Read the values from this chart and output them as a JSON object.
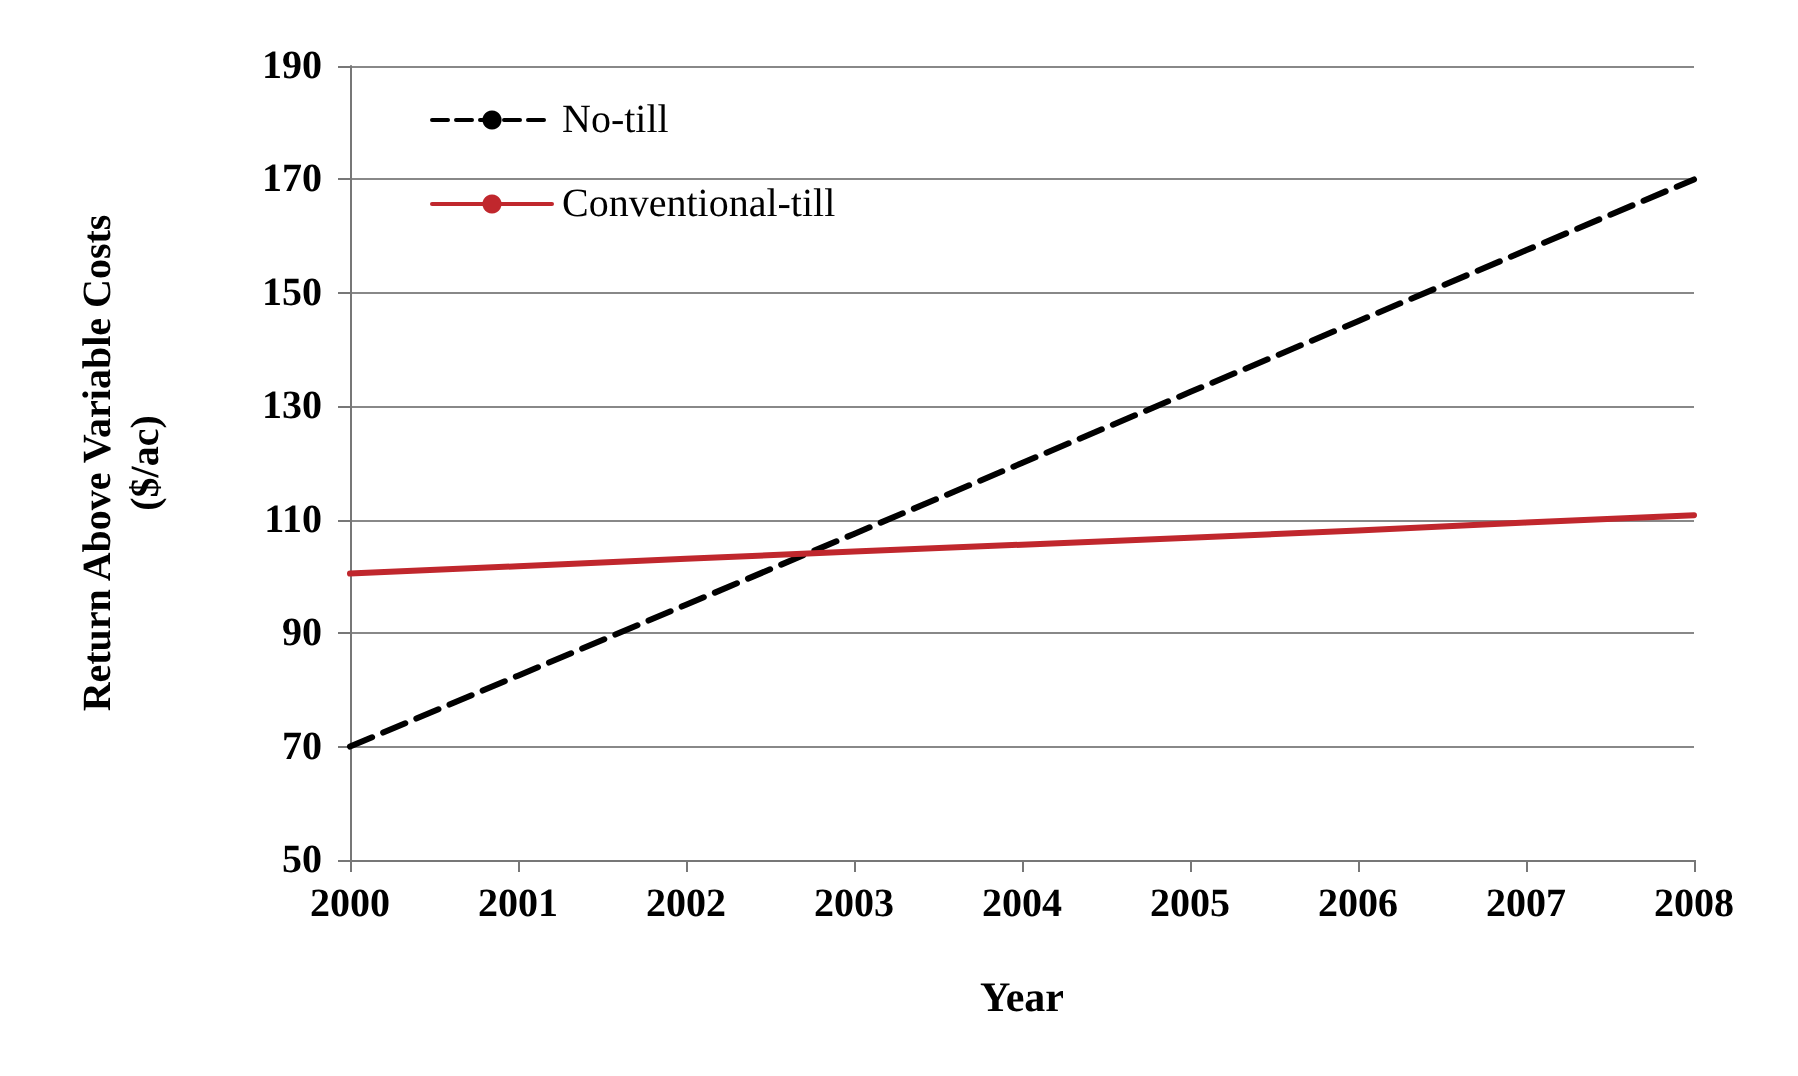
{
  "chart_data": {
    "type": "line",
    "xlabel": "Year",
    "ylabel": "Return Above Variable Costs\n($/ac)",
    "x": [
      2000,
      2001,
      2002,
      2003,
      2004,
      2005,
      2006,
      2007,
      2008
    ],
    "series": [
      {
        "name": "No-till",
        "color": "#000000",
        "line_style": "dashed",
        "values": [
          70,
          82.5,
          95,
          107.5,
          120,
          132.5,
          145,
          157.5,
          170
        ]
      },
      {
        "name": "Conventional-till",
        "color": "#c0272d",
        "line_style": "solid",
        "values": [
          100.5,
          101.8,
          103.1,
          104.4,
          105.6,
          106.8,
          108.1,
          109.5,
          110.8
        ]
      }
    ],
    "xlim": [
      2000,
      2008
    ],
    "xticks": [
      2000,
      2001,
      2002,
      2003,
      2004,
      2005,
      2006,
      2007,
      2008
    ],
    "ylim": [
      50,
      190
    ],
    "yticks": [
      50,
      70,
      90,
      110,
      130,
      150,
      170,
      190
    ],
    "grid": "y",
    "legend": "top left",
    "marker": "none"
  }
}
